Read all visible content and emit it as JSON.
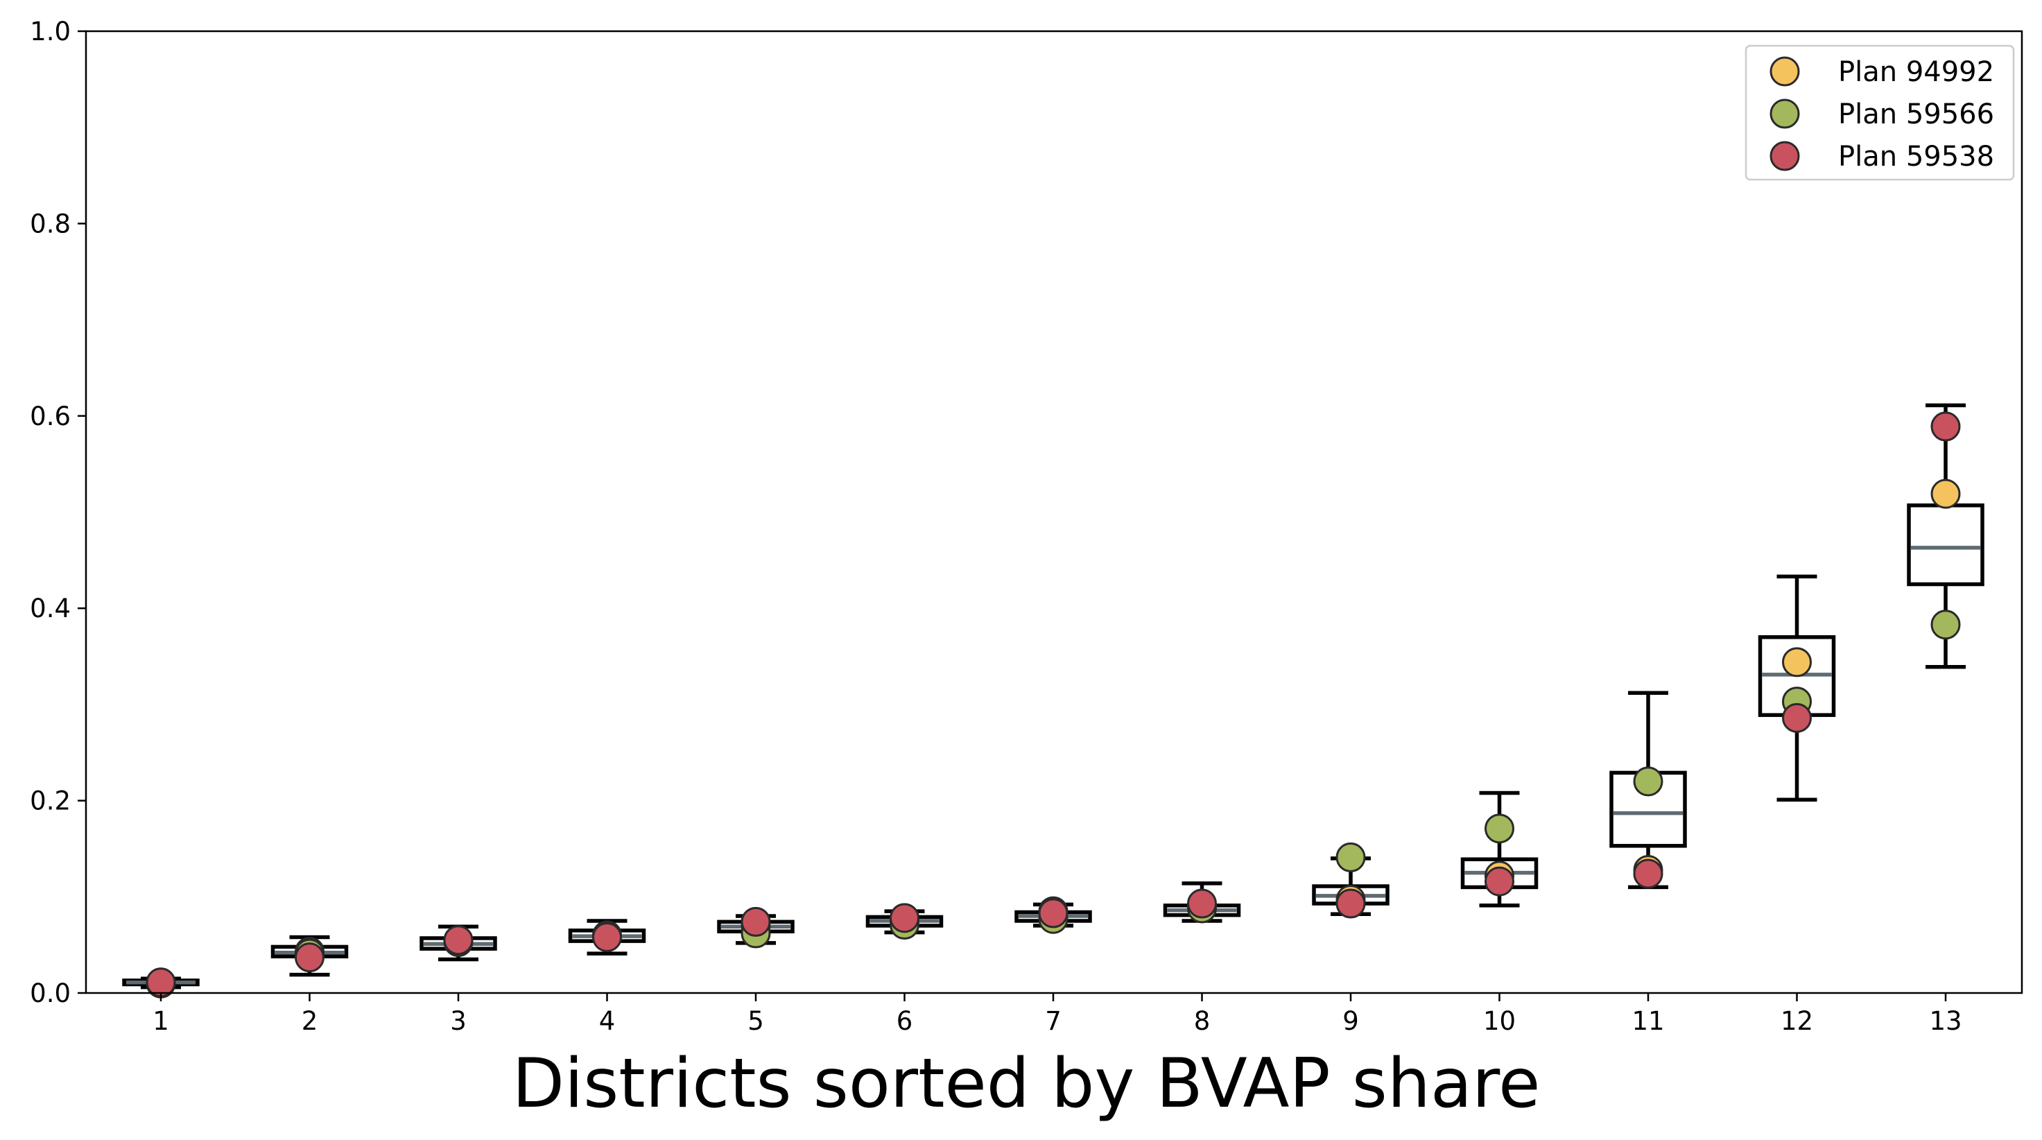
{
  "chart_data": {
    "type": "boxplot",
    "title": "",
    "xlabel": "Districts sorted by BVAP share",
    "ylabel": "",
    "ylim": [
      0,
      1.0
    ],
    "yticks": [
      "0.0",
      "0.2",
      "0.4",
      "0.6",
      "0.8",
      "1.0"
    ],
    "categories": [
      "1",
      "2",
      "3",
      "4",
      "5",
      "6",
      "7",
      "8",
      "9",
      "10",
      "11",
      "12",
      "13"
    ],
    "legend_position": "top-right",
    "grid": false,
    "colors": {
      "box": "#000000",
      "median": "#5f6b73"
    },
    "boxes": [
      {
        "whislo": 0.006,
        "q1": 0.009,
        "med": 0.011,
        "q3": 0.013,
        "whishi": 0.015
      },
      {
        "whislo": 0.019,
        "q1": 0.038,
        "med": 0.042,
        "q3": 0.048,
        "whishi": 0.058
      },
      {
        "whislo": 0.035,
        "q1": 0.046,
        "med": 0.051,
        "q3": 0.057,
        "whishi": 0.069
      },
      {
        "whislo": 0.041,
        "q1": 0.054,
        "med": 0.059,
        "q3": 0.065,
        "whishi": 0.075
      },
      {
        "whislo": 0.052,
        "q1": 0.064,
        "med": 0.069,
        "q3": 0.074,
        "whishi": 0.08
      },
      {
        "whislo": 0.063,
        "q1": 0.07,
        "med": 0.075,
        "q3": 0.079,
        "whishi": 0.085
      },
      {
        "whislo": 0.07,
        "q1": 0.075,
        "med": 0.08,
        "q3": 0.084,
        "whishi": 0.092
      },
      {
        "whislo": 0.075,
        "q1": 0.081,
        "med": 0.086,
        "q3": 0.091,
        "whishi": 0.114
      },
      {
        "whislo": 0.082,
        "q1": 0.093,
        "med": 0.101,
        "q3": 0.111,
        "whishi": 0.14
      },
      {
        "whislo": 0.091,
        "q1": 0.11,
        "med": 0.125,
        "q3": 0.139,
        "whishi": 0.208
      },
      {
        "whislo": 0.11,
        "q1": 0.153,
        "med": 0.187,
        "q3": 0.229,
        "whishi": 0.312
      },
      {
        "whislo": 0.201,
        "q1": 0.289,
        "med": 0.331,
        "q3": 0.37,
        "whishi": 0.433
      },
      {
        "whislo": 0.339,
        "q1": 0.425,
        "med": 0.463,
        "q3": 0.507,
        "whishi": 0.611
      }
    ],
    "series": [
      {
        "name": "Plan 94992",
        "color": "#f5c35e",
        "values": [
          0.01,
          0.043,
          0.054,
          0.059,
          0.07,
          0.076,
          0.085,
          0.09,
          0.097,
          0.122,
          0.128,
          0.344,
          0.519
        ]
      },
      {
        "name": "Plan 59566",
        "color": "#a3b85c",
        "values": [
          0.01,
          0.041,
          0.053,
          0.06,
          0.062,
          0.071,
          0.077,
          0.088,
          0.141,
          0.171,
          0.22,
          0.303,
          0.383
        ]
      },
      {
        "name": "Plan 59538",
        "color": "#c9525f",
        "values": [
          0.011,
          0.037,
          0.055,
          0.058,
          0.074,
          0.078,
          0.083,
          0.093,
          0.093,
          0.116,
          0.124,
          0.286,
          0.589
        ]
      }
    ]
  }
}
